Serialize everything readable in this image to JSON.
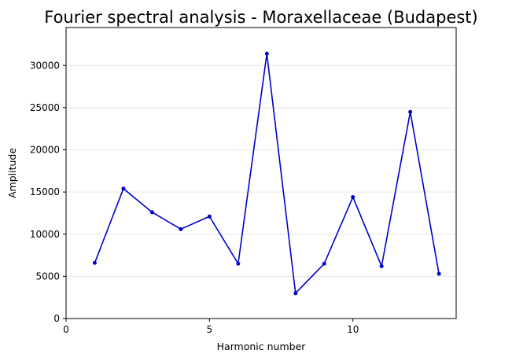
{
  "chart_data": {
    "type": "line",
    "title": "Fourier spectral analysis - Moraxellaceae (Budapest)",
    "xlabel": "Harmonic number",
    "ylabel": "Amplitude",
    "xlim": [
      0,
      13.6
    ],
    "ylim": [
      0,
      34500
    ],
    "x_ticks": [
      0,
      5,
      10
    ],
    "y_ticks": [
      0,
      5000,
      10000,
      15000,
      20000,
      25000,
      30000
    ],
    "grid": "horizontal",
    "series": [
      {
        "color": "#0000cc",
        "x": [
          1,
          2,
          3,
          4,
          5,
          6,
          7,
          8,
          9,
          10,
          11,
          12,
          13
        ],
        "values": [
          6600,
          15400,
          12600,
          10600,
          12100,
          6500,
          31400,
          3000,
          6500,
          14400,
          6200,
          24500,
          5300
        ]
      }
    ]
  }
}
